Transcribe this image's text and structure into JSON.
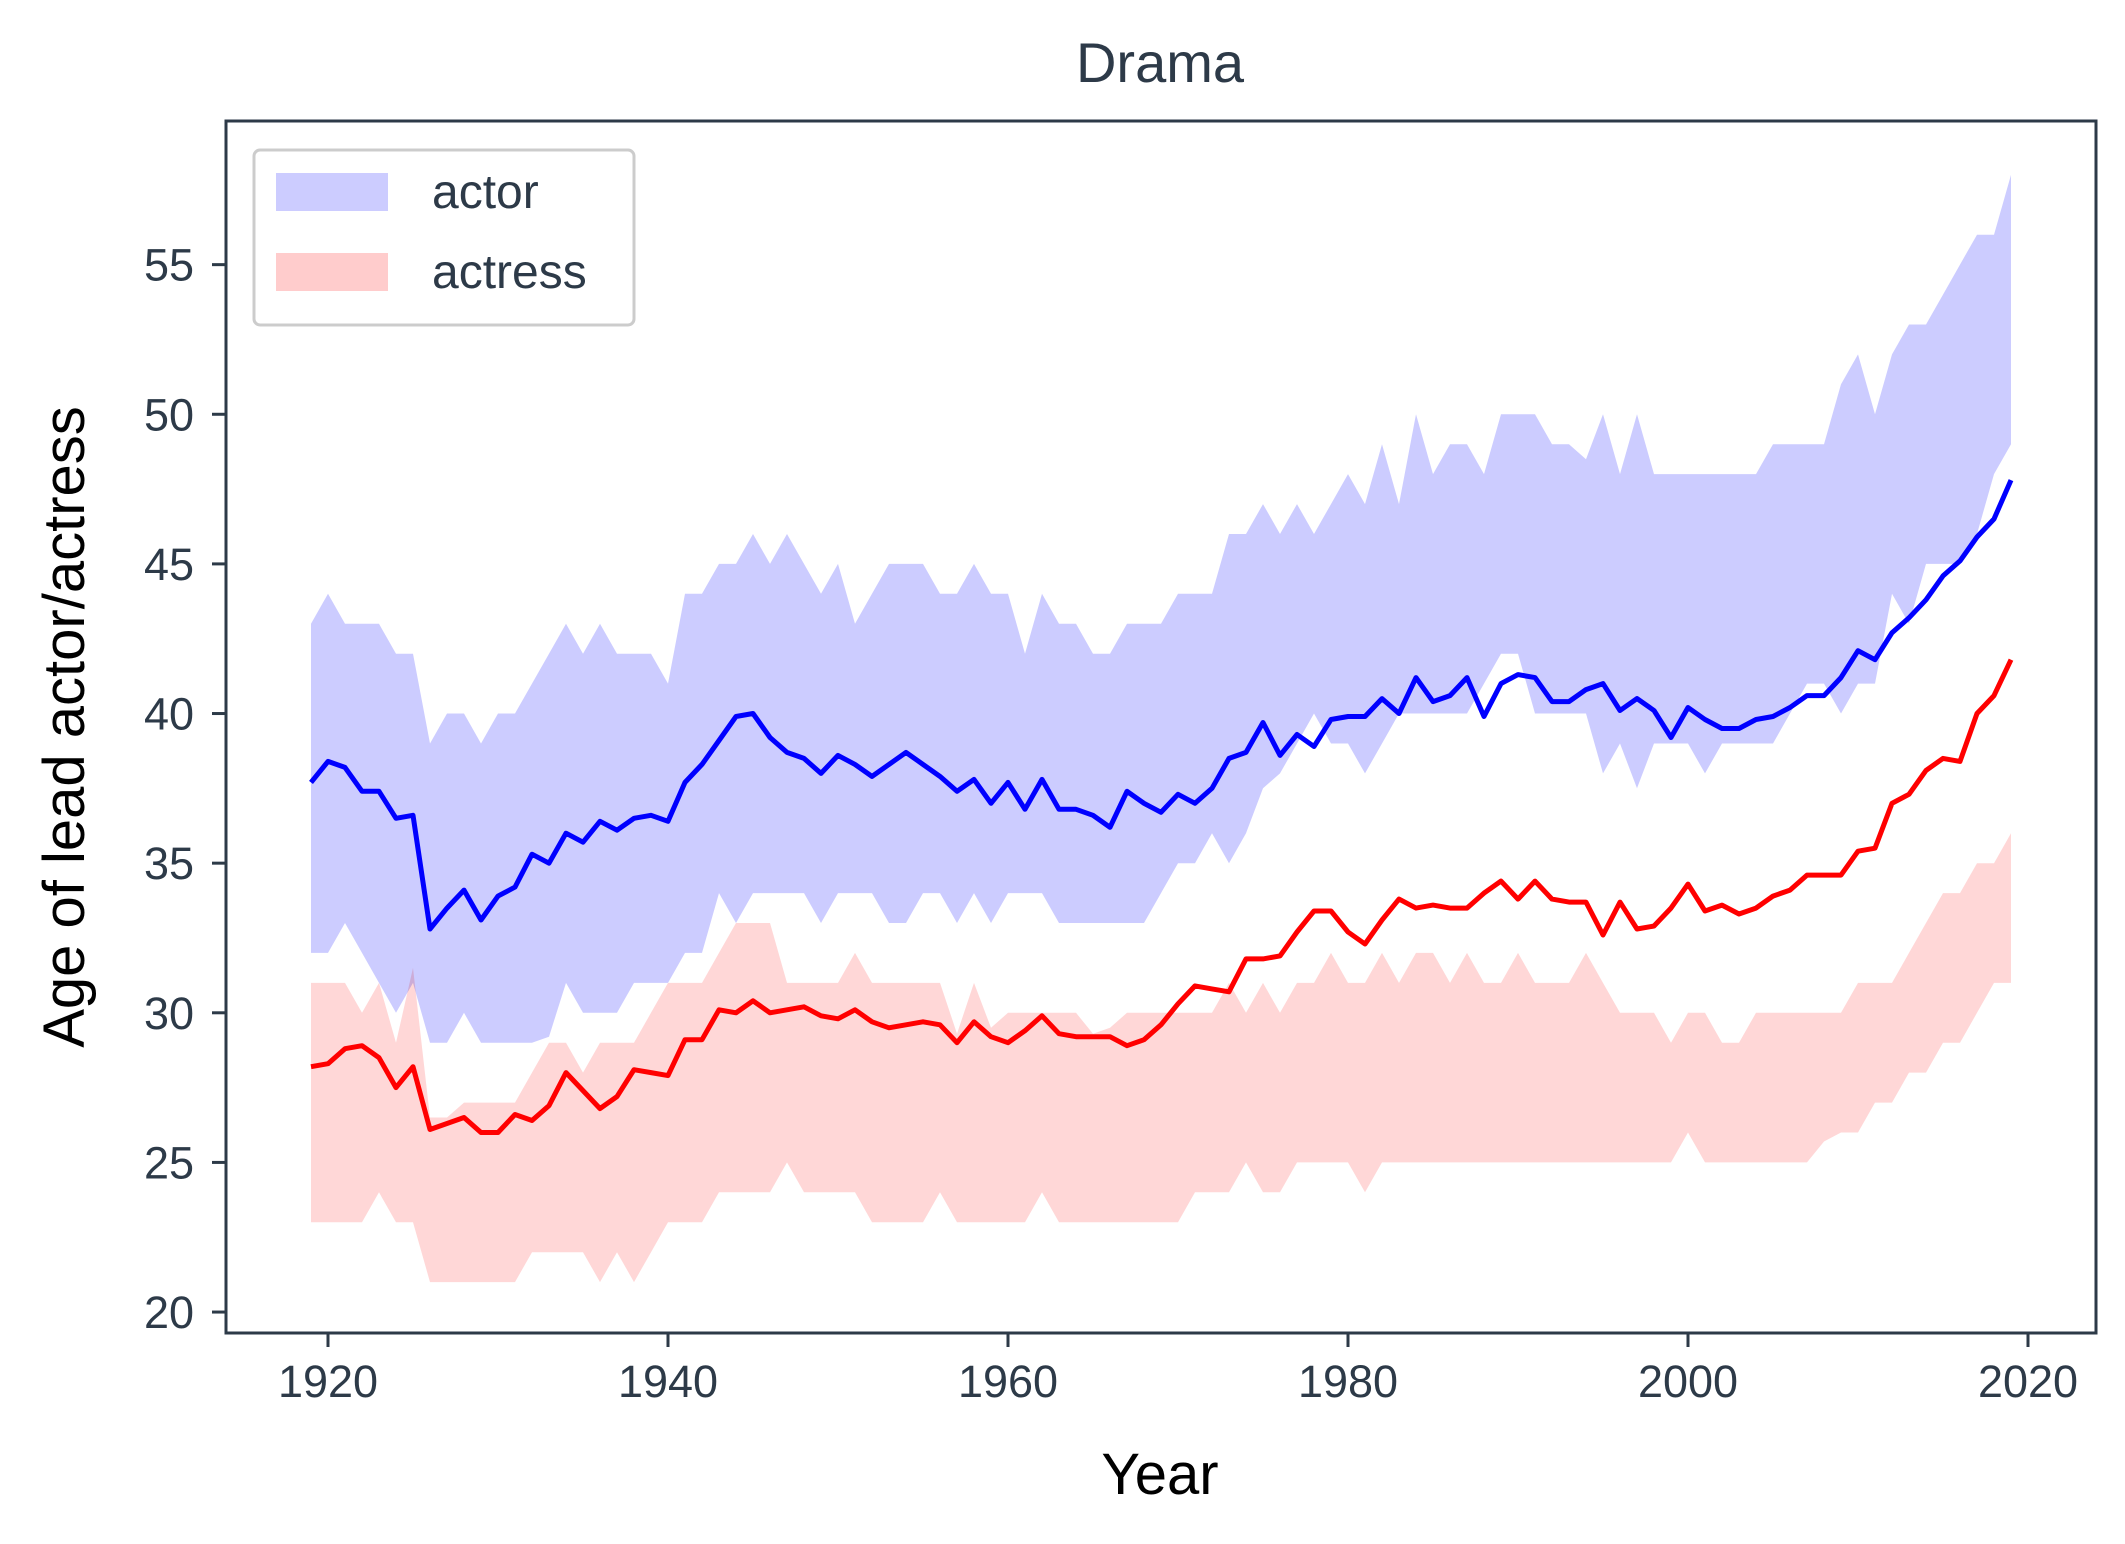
{
  "chart_data": {
    "type": "area",
    "title": "Drama",
    "xlabel": "Year",
    "ylabel": "Age of lead actor/actress",
    "xlim": [
      1914,
      2024
    ],
    "ylim": [
      19.3,
      59.8
    ],
    "xticks": [
      1920,
      1940,
      1960,
      1980,
      2000,
      2020
    ],
    "yticks": [
      20,
      25,
      30,
      35,
      40,
      45,
      50,
      55
    ],
    "grid": false,
    "legend_position": "top-left",
    "colors": {
      "actor_line": "#0000ff",
      "actor_band": "#ccccff",
      "actress_line": "#ff0000",
      "actress_band": "#ffcccc",
      "overlap": "#d7a2cc",
      "axes": "#2d3a48"
    },
    "x": [
      1919,
      1920,
      1921,
      1922,
      1923,
      1924,
      1925,
      1926,
      1927,
      1928,
      1929,
      1930,
      1931,
      1932,
      1933,
      1934,
      1935,
      1936,
      1937,
      1938,
      1939,
      1940,
      1941,
      1942,
      1943,
      1944,
      1945,
      1946,
      1947,
      1948,
      1949,
      1950,
      1951,
      1952,
      1953,
      1954,
      1955,
      1956,
      1957,
      1958,
      1959,
      1960,
      1961,
      1962,
      1963,
      1964,
      1965,
      1966,
      1967,
      1968,
      1969,
      1970,
      1971,
      1972,
      1973,
      1974,
      1975,
      1976,
      1977,
      1978,
      1979,
      1980,
      1981,
      1982,
      1983,
      1984,
      1985,
      1986,
      1987,
      1988,
      1989,
      1990,
      1991,
      1992,
      1993,
      1994,
      1995,
      1996,
      1997,
      1998,
      1999,
      2000,
      2001,
      2002,
      2003,
      2004,
      2005,
      2006,
      2007,
      2008,
      2009,
      2010,
      2011,
      2012,
      2013,
      2014,
      2015,
      2016,
      2017,
      2018,
      2019
    ],
    "series": [
      {
        "name": "actor",
        "line": [
          37.7,
          38.4,
          38.2,
          37.4,
          37.4,
          36.5,
          36.6,
          32.8,
          33.5,
          34.1,
          33.1,
          33.9,
          34.2,
          35.3,
          35.0,
          36.0,
          35.7,
          36.4,
          36.1,
          36.5,
          36.6,
          36.4,
          37.7,
          38.3,
          39.1,
          39.9,
          40.0,
          39.2,
          38.7,
          38.5,
          38.0,
          38.6,
          38.3,
          37.9,
          38.3,
          38.7,
          38.3,
          37.9,
          37.4,
          37.8,
          37.0,
          37.7,
          36.8,
          37.8,
          36.8,
          36.8,
          36.6,
          36.2,
          37.4,
          37.0,
          36.7,
          37.3,
          37.0,
          37.5,
          38.5,
          38.7,
          39.7,
          38.6,
          39.3,
          38.9,
          39.8,
          39.9,
          39.9,
          40.5,
          40.0,
          41.2,
          40.4,
          40.6,
          41.2,
          39.9,
          41.0,
          41.3,
          41.2,
          40.4,
          40.4,
          40.8,
          41.0,
          40.1,
          40.5,
          40.1,
          39.2,
          40.2,
          39.8,
          39.5,
          39.5,
          39.8,
          39.9,
          40.2,
          40.6,
          40.6,
          41.2,
          42.1,
          41.8,
          42.7,
          43.2,
          43.8,
          44.6,
          45.1,
          45.9,
          46.5,
          47.8
        ],
        "upper": [
          43,
          44,
          43,
          43,
          43,
          42,
          42,
          39,
          40,
          40,
          39,
          40,
          40,
          41,
          42,
          43,
          42,
          43,
          42,
          42,
          42,
          41,
          44,
          44,
          45,
          45,
          46,
          45,
          46,
          45,
          44,
          45,
          43,
          44,
          45,
          45,
          45,
          44,
          44,
          45,
          44,
          44,
          42,
          44,
          43,
          43,
          42,
          42,
          43,
          43,
          43,
          44,
          44,
          44,
          46,
          46,
          47,
          46,
          47,
          46,
          47,
          48,
          47,
          49,
          47,
          50,
          48,
          49,
          49,
          48,
          50,
          50,
          50,
          49,
          49,
          48.5,
          50,
          48,
          50,
          48,
          48,
          48,
          48,
          48,
          48,
          48,
          49,
          49,
          49,
          49,
          51,
          52,
          50,
          52,
          53,
          53,
          54,
          55,
          56,
          56,
          58
        ],
        "lower": [
          32,
          32,
          33,
          32,
          31,
          30,
          31,
          29,
          29,
          30,
          29,
          29,
          29,
          29,
          29.2,
          31,
          30,
          30,
          30,
          31,
          31,
          31,
          32,
          32,
          34,
          33,
          34,
          34,
          34,
          34,
          33,
          34,
          34,
          34,
          33,
          33,
          34,
          34,
          33,
          34,
          33,
          34,
          34,
          34,
          33,
          33,
          33,
          33,
          33,
          33,
          34,
          35,
          35,
          36,
          35,
          36,
          37.5,
          38,
          39,
          40,
          39,
          39,
          38,
          39,
          40,
          40,
          40,
          40,
          40,
          41,
          42,
          42,
          40,
          40,
          40,
          40,
          38,
          39,
          37.5,
          39,
          39,
          39,
          38,
          39,
          39,
          39,
          39,
          40,
          41,
          41,
          40,
          41,
          41,
          44,
          43,
          45,
          45,
          45,
          46,
          48,
          49
        ]
      },
      {
        "name": "actress",
        "line": [
          28.2,
          28.3,
          28.8,
          28.9,
          28.5,
          27.5,
          28.2,
          26.1,
          26.3,
          26.5,
          26.0,
          26.0,
          26.6,
          26.4,
          26.9,
          28.0,
          27.4,
          26.8,
          27.2,
          28.1,
          28.0,
          27.9,
          29.1,
          29.1,
          30.1,
          30.0,
          30.4,
          30.0,
          30.1,
          30.2,
          29.9,
          29.8,
          30.1,
          29.7,
          29.5,
          29.6,
          29.7,
          29.6,
          29.0,
          29.7,
          29.2,
          29.0,
          29.4,
          29.9,
          29.3,
          29.2,
          29.2,
          29.2,
          28.9,
          29.1,
          29.6,
          30.3,
          30.9,
          30.8,
          30.7,
          31.8,
          31.8,
          31.9,
          32.7,
          33.4,
          33.4,
          32.7,
          32.3,
          33.1,
          33.8,
          33.5,
          33.6,
          33.5,
          33.5,
          34.0,
          34.4,
          33.8,
          34.4,
          33.8,
          33.7,
          33.7,
          32.6,
          33.7,
          32.8,
          32.9,
          33.5,
          34.3,
          33.4,
          33.6,
          33.3,
          33.5,
          33.9,
          34.1,
          34.6,
          34.6,
          34.6,
          35.4,
          35.5,
          37.0,
          37.3,
          38.1,
          38.5,
          38.4,
          40.0,
          40.6,
          41.8
        ],
        "upper": [
          31,
          31,
          31,
          30,
          31,
          29,
          31.5,
          26.5,
          26.5,
          27,
          27,
          27,
          27,
          28,
          29,
          29,
          28,
          29,
          29,
          29,
          30,
          31,
          31,
          31,
          32,
          33,
          33,
          33,
          31,
          31,
          31,
          31,
          32,
          31,
          31,
          31,
          31,
          31,
          29.3,
          31,
          29.5,
          30,
          30,
          30,
          30,
          30,
          29.3,
          29.5,
          30,
          30,
          30,
          30,
          30,
          30,
          31,
          30,
          31,
          30,
          31,
          31,
          32,
          31,
          31,
          32,
          31,
          32,
          32,
          31,
          32,
          31,
          31,
          32,
          31,
          31,
          31,
          32,
          31,
          30,
          30,
          30,
          29,
          30,
          30,
          29,
          29,
          30,
          30,
          30,
          30,
          30,
          30,
          31,
          31,
          31,
          32,
          33,
          34,
          34,
          35,
          35,
          36
        ],
        "lower": [
          23,
          23,
          23,
          23,
          24,
          23,
          23,
          21,
          21,
          21,
          21,
          21,
          21,
          22,
          22,
          22,
          22,
          21,
          22,
          21,
          22,
          23,
          23,
          23,
          24,
          24,
          24,
          24,
          25,
          24,
          24,
          24,
          24,
          23,
          23,
          23,
          23,
          24,
          23,
          23,
          23,
          23,
          23,
          24,
          23,
          23,
          23,
          23,
          23,
          23,
          23,
          23,
          24,
          24,
          24,
          25,
          24,
          24,
          25,
          25,
          25,
          25,
          24,
          25,
          25,
          25,
          25,
          25,
          25,
          25,
          25,
          25,
          25,
          25,
          25,
          25,
          25,
          25,
          25,
          25,
          25,
          26,
          25,
          25,
          25,
          25,
          25,
          25,
          25,
          25.7,
          26,
          26,
          27,
          27,
          28,
          28,
          29,
          29,
          30,
          31,
          31
        ]
      }
    ]
  }
}
